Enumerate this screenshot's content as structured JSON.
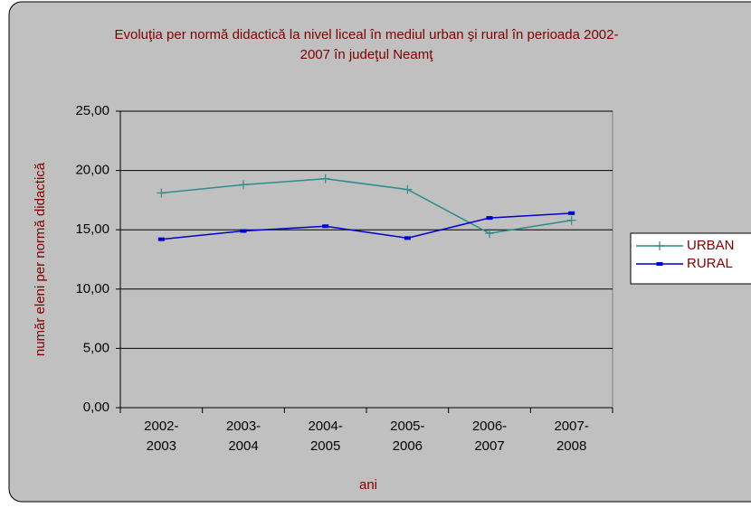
{
  "chart_data": {
    "type": "line",
    "title": "Evoluţia per normă didactică la nivel liceal în mediul urban şi rural în perioada 2002-2007 în judeţul Neamţ",
    "xlabel": "ani",
    "ylabel": "număr eleni per normă didactică",
    "categories": [
      "2002-2003",
      "2003-2004",
      "2004-2005",
      "2005-2006",
      "2006-2007",
      "2007-2008"
    ],
    "series": [
      {
        "name": "URBAN",
        "color": "#2e8b8b",
        "marker": "plus",
        "values": [
          18.1,
          18.8,
          19.3,
          18.4,
          14.7,
          15.8
        ]
      },
      {
        "name": "RURAL",
        "color": "#0000cc",
        "marker": "dash",
        "values": [
          14.2,
          14.9,
          15.3,
          14.3,
          16.0,
          16.4
        ]
      }
    ],
    "ylim": [
      0,
      25
    ],
    "yticks": [
      {
        "value": 0,
        "label": "0,00"
      },
      {
        "value": 5,
        "label": "5,00"
      },
      {
        "value": 10,
        "label": "10,00"
      },
      {
        "value": 15,
        "label": "15,00"
      },
      {
        "value": 20,
        "label": "20,00"
      },
      {
        "value": 25,
        "label": "25,00"
      }
    ],
    "grid": true,
    "legend": "right"
  }
}
